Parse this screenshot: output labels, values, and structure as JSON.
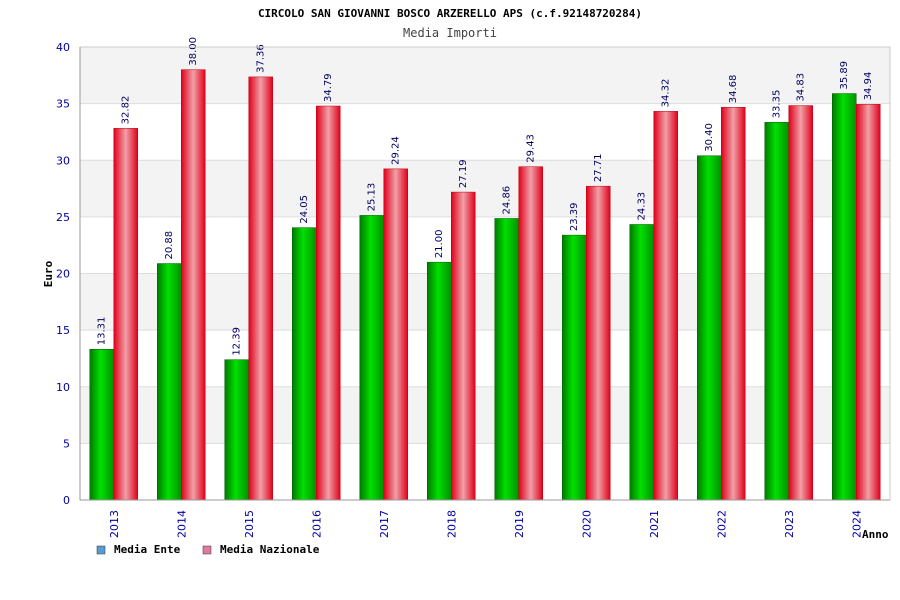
{
  "chart_data": {
    "type": "bar",
    "title": "CIRCOLO SAN GIOVANNI BOSCO ARZERELLO APS (c.f.92148720284)",
    "subtitle": "Media Importi",
    "xlabel": "Anno",
    "ylabel": "Euro",
    "ylim": [
      0,
      40
    ],
    "yticks": [
      "0",
      "5",
      "10",
      "15",
      "20",
      "25",
      "30",
      "35",
      "40"
    ],
    "grid": true,
    "legend_position": "bottom-left",
    "categories": [
      "2013",
      "2014",
      "2015",
      "2016",
      "2017",
      "2018",
      "2019",
      "2020",
      "2021",
      "2022",
      "2023",
      "2024"
    ],
    "series": [
      {
        "name": "Media Ente",
        "color": "#00b000",
        "legend_color": "#5b9bd5",
        "values": [
          13.31,
          20.88,
          12.39,
          24.05,
          25.13,
          21.0,
          24.86,
          23.39,
          24.33,
          30.4,
          33.35,
          35.89
        ],
        "labels": [
          "13.31",
          "20.88",
          "12.39",
          "24.05",
          "25.13",
          "21.00",
          "24.86",
          "23.39",
          "24.33",
          "30.40",
          "33.35",
          "35.89"
        ]
      },
      {
        "name": "Media Nazionale",
        "color": "#f01020",
        "legend_color": "#e07aa0",
        "values": [
          32.82,
          38.0,
          37.36,
          34.79,
          29.24,
          27.19,
          29.43,
          27.71,
          34.32,
          34.68,
          34.83,
          34.94
        ],
        "labels": [
          "32.82",
          "38.00",
          "37.36",
          "34.79",
          "29.24",
          "27.19",
          "29.43",
          "27.71",
          "34.32",
          "34.68",
          "34.83",
          "34.94"
        ]
      }
    ]
  }
}
